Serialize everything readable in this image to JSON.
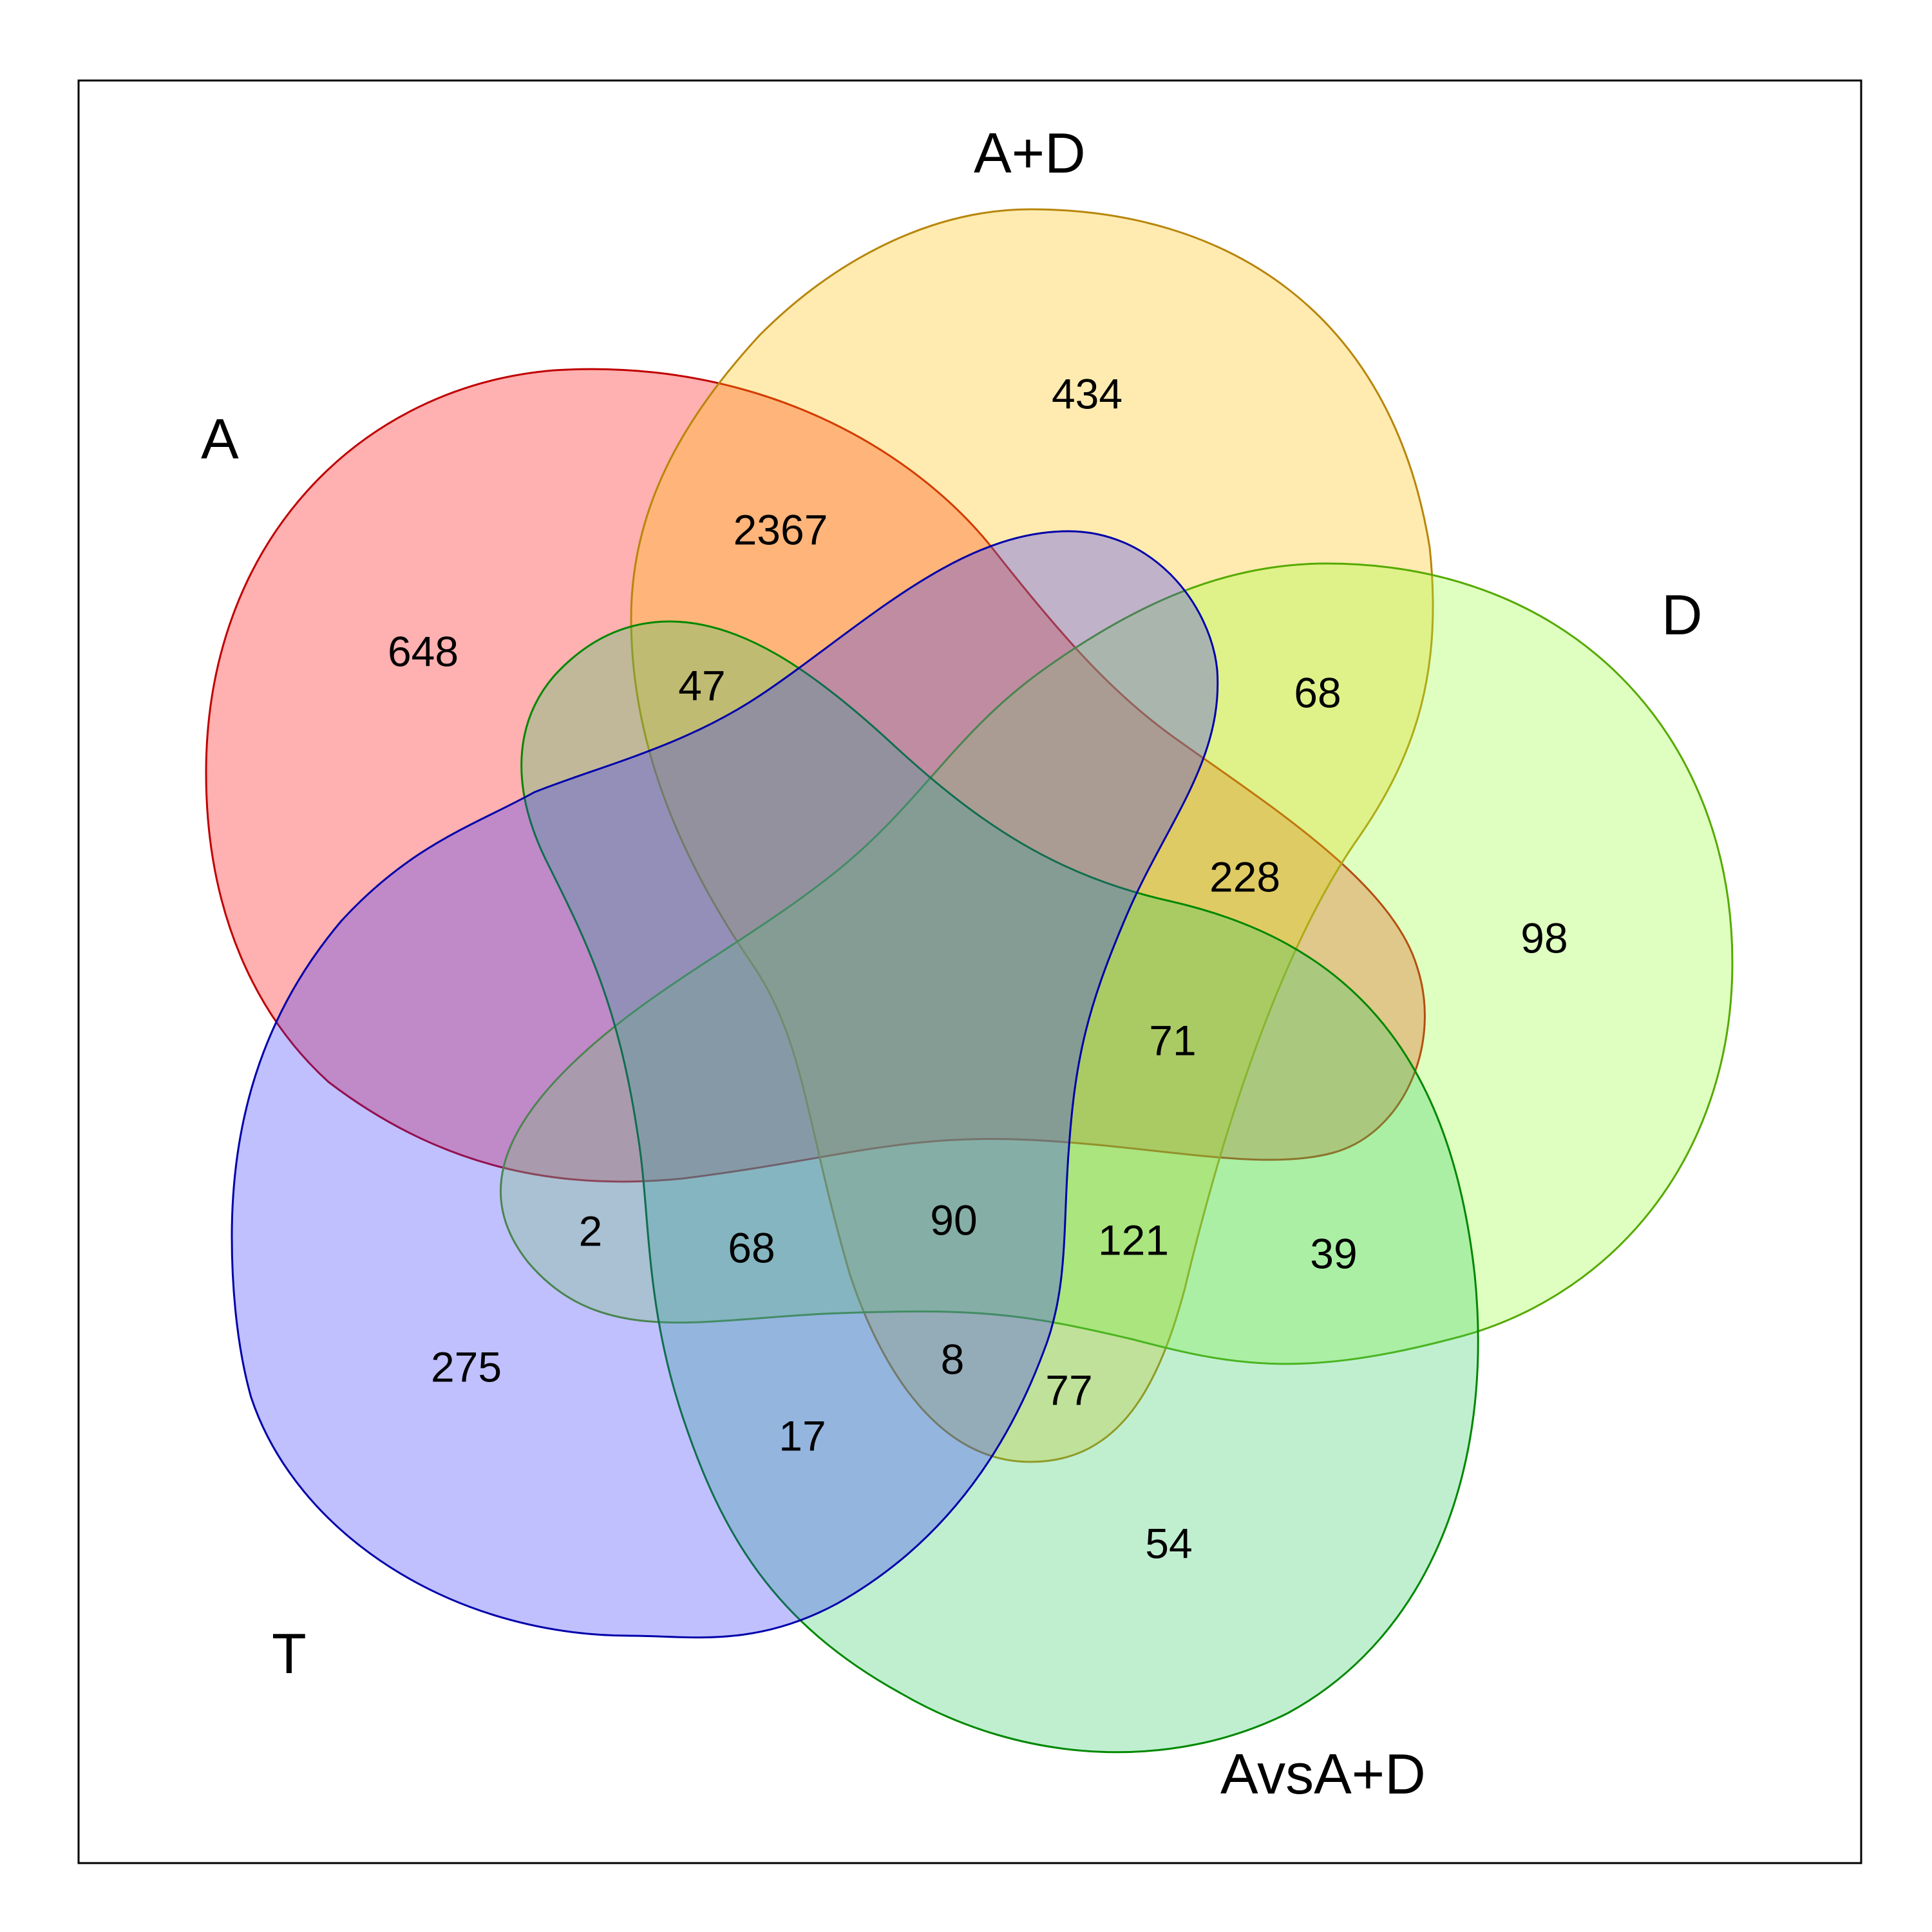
{
  "sets": [
    {
      "id": "A",
      "label": "A",
      "fill": "#FF0000",
      "stroke": "#C00000"
    },
    {
      "id": "AD",
      "label": "A+D",
      "fill": "#FFC000",
      "stroke": "#B8860B"
    },
    {
      "id": "D",
      "label": "D",
      "fill": "#99FF33",
      "stroke": "#55AA00"
    },
    {
      "id": "AvsAD",
      "label": "AvsA+D",
      "fill": "#33CC66",
      "stroke": "#008800"
    },
    {
      "id": "T",
      "label": "T",
      "fill": "#3333FF",
      "stroke": "#0000AA"
    }
  ],
  "counts": {
    "A_only": "648",
    "AD_only": "434",
    "D_only": "98",
    "AvsAD_only": "54",
    "T_only": "275",
    "A_AD": "2367",
    "A_AD_AvsAD": "47",
    "AD_D": "68",
    "A_AD_D": "228",
    "A_AD_D_AvsAD": "71",
    "D_AvsAD": "39",
    "AD_D_AvsAD": "121",
    "AD_D_AvsAD_T": "77",
    "AD_AvsAD_T": "8",
    "AvsAD_T": "17",
    "A_AvsAD_T": "68",
    "A_D_T": "2",
    "all_five": "90"
  }
}
